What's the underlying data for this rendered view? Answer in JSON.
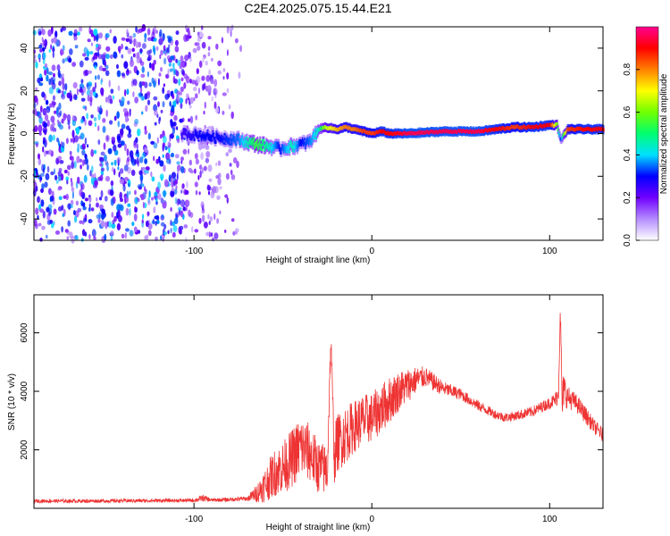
{
  "figure_title": "C2E4.2025.075.15.44.E21",
  "chart_data": [
    {
      "type": "heatmap",
      "title": "C2E4.2025.075.15.44.E21",
      "xlabel": "Height of straight line (km)",
      "ylabel": "Frequency (Hz)",
      "xlim": [
        -190,
        130
      ],
      "ylim": [
        -50,
        50
      ],
      "xticks": [
        -100,
        0,
        100
      ],
      "yticks": [
        -40,
        -20,
        0,
        20,
        40
      ],
      "colorbar": {
        "label": "Normalized spectral amplitude",
        "range": [
          0,
          1
        ],
        "ticks": [
          0.0,
          0.2,
          0.4,
          0.6,
          0.8
        ],
        "colors": [
          "#ffffff",
          "#b58cff",
          "#7000ff",
          "#0000ff",
          "#00e0ff",
          "#00ff70",
          "#70ff00",
          "#ffff00",
          "#ff8000",
          "#ff0000",
          "#ff0090"
        ]
      },
      "noise_region_x": [
        -190,
        -70
      ],
      "signal_track": {
        "x": [
          -107,
          -95,
          -85,
          -75,
          -65,
          -58,
          -52,
          -45,
          -40,
          -35,
          -30,
          -26,
          -20,
          -15,
          -10,
          -5,
          0,
          5,
          10,
          20,
          40,
          60,
          70,
          80,
          90,
          100,
          104,
          106,
          110,
          120,
          130
        ],
        "frequency": [
          0,
          -1,
          -2,
          -3,
          -5,
          -6,
          -7,
          -6,
          -5,
          -4,
          2,
          3,
          2,
          3,
          2,
          1,
          0,
          1,
          0,
          0,
          1,
          1,
          2,
          3,
          3,
          4,
          4,
          -3,
          2,
          2,
          2
        ],
        "amplitude": [
          0.25,
          0.3,
          0.3,
          0.35,
          0.55,
          0.45,
          0.3,
          0.45,
          0.3,
          0.35,
          0.45,
          0.65,
          0.75,
          0.8,
          0.8,
          0.85,
          0.85,
          0.9,
          0.9,
          0.95,
          0.95,
          0.95,
          0.9,
          0.85,
          0.9,
          0.9,
          0.6,
          0.3,
          0.85,
          0.9,
          0.9
        ]
      }
    },
    {
      "type": "line",
      "xlabel": "Height of straight line (km)",
      "ylabel": "SNR (10 * v/v)",
      "xlim": [
        -190,
        130
      ],
      "ylim": [
        0,
        7300
      ],
      "xticks": [
        -100,
        0,
        100
      ],
      "yticks": [
        2000,
        4000,
        6000
      ],
      "series": [
        {
          "name": "SNR",
          "color": "#ee3333",
          "x": [
            -190,
            -160,
            -130,
            -100,
            -95,
            -90,
            -80,
            -70,
            -65,
            -60,
            -55,
            -50,
            -45,
            -40,
            -35,
            -30,
            -25,
            -23,
            -21,
            -20,
            -15,
            -10,
            -5,
            0,
            5,
            10,
            15,
            20,
            25,
            30,
            35,
            40,
            50,
            60,
            70,
            75,
            80,
            90,
            100,
            103,
            105,
            106,
            107,
            108,
            110,
            115,
            120,
            125,
            130
          ],
          "values": [
            250,
            250,
            260,
            270,
            350,
            280,
            300,
            330,
            500,
            800,
            1200,
            1400,
            1700,
            2100,
            1900,
            1400,
            1300,
            5800,
            1500,
            2200,
            2500,
            2800,
            3000,
            3100,
            3400,
            3700,
            4000,
            4200,
            4400,
            4500,
            4300,
            4100,
            3900,
            3500,
            3200,
            3100,
            3150,
            3300,
            3600,
            3700,
            3900,
            6900,
            3500,
            4100,
            3800,
            3600,
            3200,
            2800,
            2500
          ],
          "spread": [
            60,
            60,
            60,
            60,
            120,
            60,
            70,
            80,
            300,
            600,
            800,
            900,
            1000,
            1100,
            1000,
            900,
            900,
            400,
            800,
            1000,
            1000,
            900,
            900,
            850,
            850,
            800,
            700,
            600,
            450,
            350,
            300,
            250,
            200,
            180,
            160,
            160,
            160,
            180,
            200,
            250,
            350,
            400,
            800,
            600,
            400,
            300,
            300,
            250,
            250
          ]
        }
      ]
    }
  ]
}
